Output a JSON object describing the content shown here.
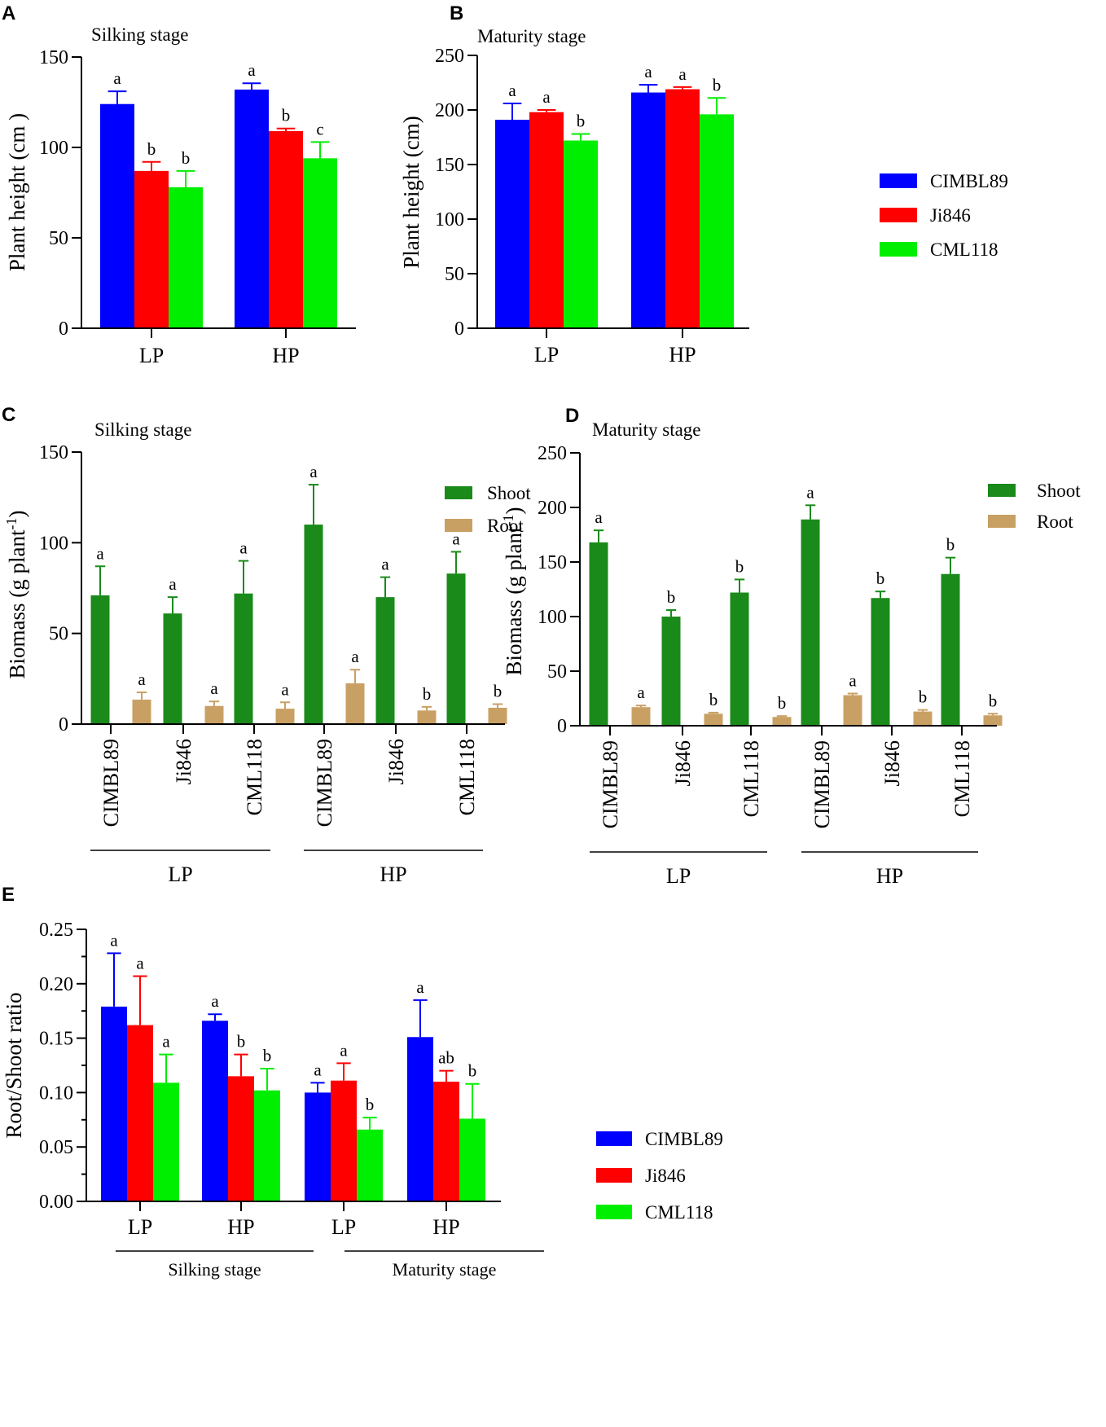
{
  "colors": {
    "CIMBL89": "#0000ff",
    "Ji846": "#ff0000",
    "CML118": "#00ee00",
    "Shoot": "#1a8a1a",
    "Root": "#c9a064"
  },
  "chart_data": [
    {
      "panel": "A",
      "type": "bar",
      "title": "Silking stage",
      "ylabel": "Plant height (cm )",
      "xlabel": "",
      "ylim": [
        0,
        150
      ],
      "yticks": [
        0,
        50,
        100,
        150
      ],
      "categories": [
        "LP",
        "HP"
      ],
      "series": [
        {
          "name": "CIMBL89",
          "values": [
            124,
            132
          ],
          "errors": [
            7,
            3.5
          ],
          "letters": [
            "a",
            "a"
          ]
        },
        {
          "name": "Ji846",
          "values": [
            87,
            109
          ],
          "errors": [
            5,
            1.5
          ],
          "letters": [
            "b",
            "b"
          ]
        },
        {
          "name": "CML118",
          "values": [
            78,
            94
          ],
          "errors": [
            9,
            9
          ],
          "letters": [
            "b",
            "c"
          ]
        }
      ]
    },
    {
      "panel": "B",
      "type": "bar",
      "title": "Maturity stage",
      "ylabel": "Plant height (cm)",
      "xlabel": "",
      "ylim": [
        0,
        250
      ],
      "yticks": [
        0,
        50,
        100,
        150,
        200,
        250
      ],
      "categories": [
        "LP",
        "HP"
      ],
      "series": [
        {
          "name": "CIMBL89",
          "values": [
            191,
            216
          ],
          "errors": [
            15,
            7
          ],
          "letters": [
            "a",
            "a"
          ]
        },
        {
          "name": "Ji846",
          "values": [
            198,
            219
          ],
          "errors": [
            2,
            2
          ],
          "letters": [
            "a",
            "a"
          ]
        },
        {
          "name": "CML118",
          "values": [
            172,
            196
          ],
          "errors": [
            6,
            15
          ],
          "letters": [
            "b",
            "b"
          ]
        }
      ],
      "legend": [
        "CIMBL89",
        "Ji846",
        "CML118"
      ]
    },
    {
      "panel": "C",
      "type": "bar",
      "title": "Silking stage",
      "ylabel": "Biomass (g plant",
      "ylabel_sup": "-1",
      "ylabel_end": ")",
      "ylim": [
        0,
        150
      ],
      "yticks": [
        0,
        50,
        100,
        150
      ],
      "categories": [
        "CIMBL89",
        "Ji846",
        "CML118",
        "CIMBL89",
        "Ji846",
        "CML118"
      ],
      "groups": [
        "LP",
        "HP"
      ],
      "series": [
        {
          "name": "Shoot",
          "values": [
            71,
            61,
            72,
            110,
            70,
            83
          ],
          "errors": [
            16,
            9,
            18,
            22,
            11,
            12
          ],
          "letters": [
            "a",
            "a",
            "a",
            "a",
            "a",
            "a"
          ]
        },
        {
          "name": "Root",
          "values": [
            13.5,
            10,
            8.5,
            22.5,
            7.5,
            9
          ],
          "errors": [
            4,
            2.5,
            3.5,
            7.5,
            2,
            2
          ],
          "letters": [
            "a",
            "a",
            "a",
            "a",
            "b",
            "b"
          ]
        }
      ],
      "legend": [
        "Shoot",
        "Root"
      ]
    },
    {
      "panel": "D",
      "type": "bar",
      "title": "Maturity stage",
      "ylabel": "Biomass (g plant",
      "ylabel_sup": "-1",
      "ylabel_end": ")",
      "ylim": [
        0,
        250
      ],
      "yticks": [
        0,
        50,
        100,
        150,
        200,
        250
      ],
      "categories": [
        "CIMBL89",
        "Ji846",
        "CML118",
        "CIMBL89",
        "Ji846",
        "CML118"
      ],
      "groups": [
        "LP",
        "HP"
      ],
      "series": [
        {
          "name": "Shoot",
          "values": [
            168,
            100,
            122,
            189,
            117,
            139
          ],
          "errors": [
            11,
            6,
            12,
            13,
            6,
            15
          ],
          "letters": [
            "a",
            "b",
            "b",
            "a",
            "b",
            "b"
          ]
        },
        {
          "name": "Root",
          "values": [
            17,
            11,
            8,
            28,
            13,
            9.5
          ],
          "errors": [
            1.5,
            1,
            0.8,
            1.5,
            1.5,
            1.5
          ],
          "letters": [
            "a",
            "b",
            "b",
            "a",
            "b",
            "b"
          ]
        }
      ],
      "legend": [
        "Shoot",
        "Root"
      ]
    },
    {
      "panel": "E",
      "type": "bar",
      "title": "",
      "ylabel": "Root/Shoot ratio",
      "ylim": [
        0,
        0.25
      ],
      "yticks": [
        "0.00",
        "0.05",
        "0.10",
        "0.15",
        "0.20",
        "0.25"
      ],
      "categories": [
        "LP",
        "HP",
        "LP",
        "HP"
      ],
      "groups": [
        "Silking stage",
        "Maturity stage"
      ],
      "series": [
        {
          "name": "CIMBL89",
          "values": [
            0.179,
            0.166,
            0.1,
            0.151
          ],
          "errors": [
            0.049,
            0.006,
            0.009,
            0.034
          ],
          "letters": [
            "a",
            "a",
            "a",
            "a"
          ]
        },
        {
          "name": "Ji846",
          "values": [
            0.162,
            0.115,
            0.111,
            0.11
          ],
          "errors": [
            0.045,
            0.02,
            0.016,
            0.01
          ],
          "letters": [
            "a",
            "b",
            "a",
            "ab"
          ]
        },
        {
          "name": "CML118",
          "values": [
            0.109,
            0.102,
            0.066,
            0.076
          ],
          "errors": [
            0.026,
            0.02,
            0.011,
            0.032
          ],
          "letters": [
            "a",
            "b",
            "b",
            "b"
          ]
        }
      ],
      "legend": [
        "CIMBL89",
        "Ji846",
        "CML118"
      ]
    }
  ]
}
